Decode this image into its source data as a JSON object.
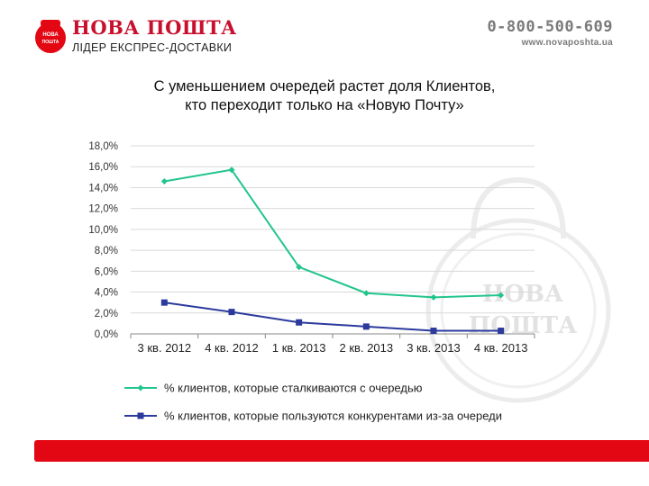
{
  "header": {
    "brand_name": "НОВА ПОШТА",
    "brand_tagline": "ЛІДЕР ЕКСПРЕС-ДОСТАВКИ",
    "seal_text": [
      "НОВА",
      "ПОШТА"
    ],
    "phone": "0-800-500-609",
    "website": "www.novaposhta.ua"
  },
  "slide": {
    "title_line1": "С уменьшением очередей растет доля Клиентов,",
    "title_line2": "кто переходит только на «Новую Почту»"
  },
  "watermark_text": [
    "НОВА",
    "ПОШТА"
  ],
  "colors": {
    "brand_red": "#e30613",
    "series_green": "#22c58b",
    "series_blue": "#2b3a9c",
    "grid": "#d9d9d9"
  },
  "chart_data": {
    "type": "line",
    "categories": [
      "3 кв. 2012",
      "4 кв. 2012",
      "1 кв. 2013",
      "2 кв. 2013",
      "3 кв. 2013",
      "4 кв. 2013"
    ],
    "y_ticks": [
      "0,0%",
      "2,0%",
      "4,0%",
      "6,0%",
      "8,0%",
      "10,0%",
      "12,0%",
      "14,0%",
      "16,0%",
      "18,0%"
    ],
    "ylim": [
      0,
      18
    ],
    "grid": true,
    "legend_position": "bottom",
    "series": [
      {
        "name": "% клиентов, которые сталкиваются с очередью",
        "values": [
          14.6,
          15.7,
          6.4,
          3.9,
          3.5,
          3.7
        ],
        "color": "#22c58b",
        "marker": "diamond"
      },
      {
        "name": "% клиентов, которые пользуются конкурентами из-за очереди",
        "values": [
          3.0,
          2.1,
          1.1,
          0.7,
          0.3,
          0.3
        ],
        "color": "#2b3a9c",
        "marker": "square"
      }
    ]
  }
}
